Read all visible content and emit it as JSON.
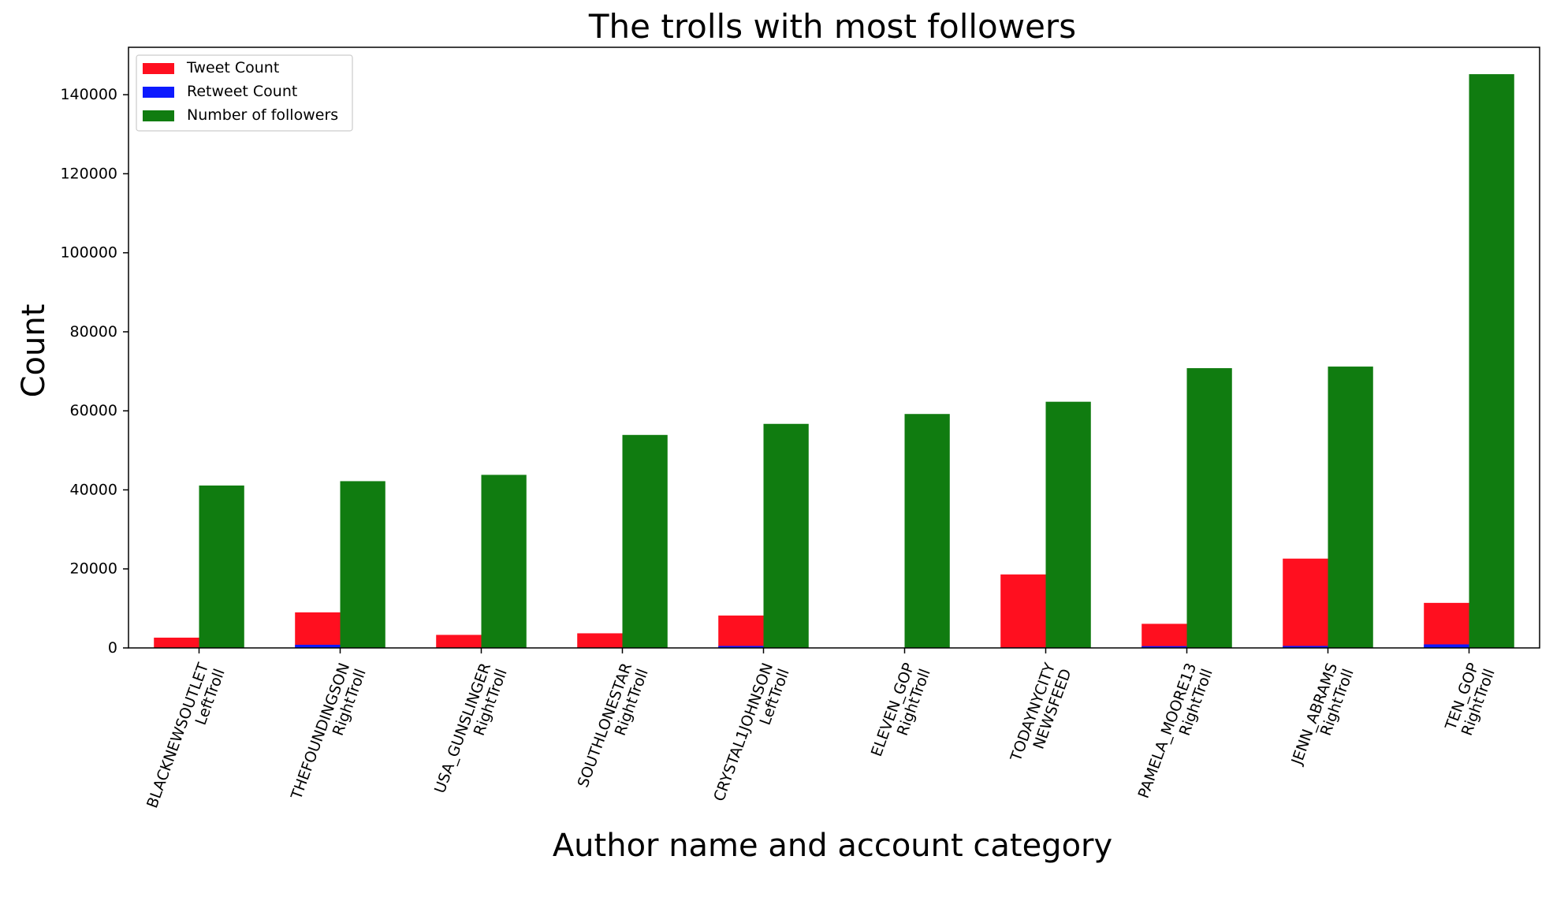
{
  "chart_data": {
    "type": "bar",
    "title": "The trolls with most followers",
    "xlabel": "Author name and account category",
    "ylabel": "Count",
    "categories": [
      [
        "BLACKNEWSOUTLET",
        "LeftTroll"
      ],
      [
        "THEFOUNDINGSON",
        "RightTroll"
      ],
      [
        "USA_GUNSLINGER",
        "RightTroll"
      ],
      [
        "SOUTHLONESTAR",
        "RightTroll"
      ],
      [
        "CRYSTAL1JOHNSON",
        "LeftTroll"
      ],
      [
        "ELEVEN_GOP",
        "RightTroll"
      ],
      [
        "TODAYNYCITY",
        "NEWSFEED"
      ],
      [
        "PAMELA_MOORE13",
        "RightTroll"
      ],
      [
        "JENN_ABRAMS",
        "RightTroll"
      ],
      [
        "TEN_GOP",
        "RightTroll"
      ]
    ],
    "series": [
      {
        "name": "Tweet Count",
        "color": "#ff0f1f",
        "values": [
          2600,
          9000,
          3300,
          3700,
          8200,
          0,
          18600,
          6100,
          22600,
          11400
        ]
      },
      {
        "name": "Retweet Count",
        "color": "#0d1aff",
        "values": [
          50,
          800,
          60,
          80,
          500,
          0,
          120,
          450,
          500,
          900
        ]
      },
      {
        "name": "Number of followers",
        "color": "#107c10",
        "values": [
          41100,
          42200,
          43800,
          53900,
          56700,
          59200,
          62300,
          70800,
          71200,
          145200
        ]
      }
    ],
    "ylim": [
      0,
      152000
    ],
    "yticks": [
      0,
      20000,
      40000,
      60000,
      80000,
      100000,
      120000,
      140000
    ],
    "legend_position": "upper-left",
    "grid": false
  }
}
